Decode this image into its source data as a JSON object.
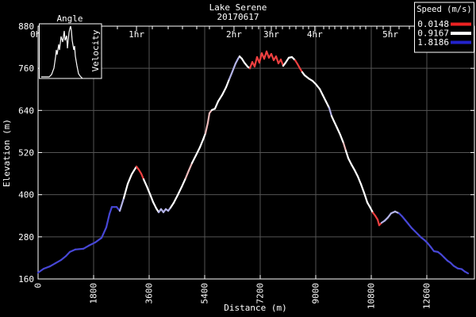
{
  "window": {
    "background": "#000000"
  },
  "chart_data": {
    "type": "line",
    "title": "Lake Serene",
    "subtitle": "20170617",
    "xlabel": "Distance (m)",
    "ylabel": "Elevation (m)",
    "xlim": [
      0,
      14143
    ],
    "ylim": [
      160,
      880
    ],
    "xticks": [
      0,
      1800,
      3600,
      5400,
      7200,
      9000,
      10800,
      12600
    ],
    "yticks": [
      160,
      280,
      400,
      520,
      640,
      760,
      880
    ],
    "grid": true,
    "colors": {
      "background": "#000000",
      "axis": "#ffffff",
      "grid": "#555555",
      "text": "#ffffff"
    },
    "speed_legend": {
      "title": "Speed (m/s)",
      "entries": [
        {
          "label": "0.0148",
          "color": "#ee2222"
        },
        {
          "label": "0.9167",
          "color": "#ffffff"
        },
        {
          "label": "1.8186",
          "color": "#2222cc"
        }
      ]
    },
    "speed_color_map": {
      "s": "#ee4040",
      "P": "#eebbbb",
      "m": "#ffffff",
      "F": "#b4b4e8",
      "f": "#4747d6"
    },
    "time_axis": {
      "hour_marks": [
        {
          "label": "0hr",
          "dist": 0
        },
        {
          "label": "1hr",
          "dist": 3190
        },
        {
          "label": "2hr",
          "dist": 6350
        },
        {
          "label": "3hr",
          "dist": 7560
        },
        {
          "label": "4hr",
          "dist": 8970
        },
        {
          "label": "5hr",
          "dist": 11420
        }
      ],
      "minor_tick_dists": [
        643,
        1286,
        1929,
        2571,
        3703,
        4217,
        4680,
        5143,
        5554,
        5966,
        6737,
        6943,
        7149,
        7354,
        7714,
        7920,
        8151,
        8357,
        8589,
        8769,
        9257,
        9437,
        9617,
        9823,
        10029,
        10234,
        10440,
        10620,
        10980,
        11186,
        11700,
        12034,
        12394,
        12780,
        13166,
        13577
      ]
    },
    "inset": {
      "title": "Angle",
      "ylabel": "Velocity",
      "histogram_rel": [
        [
          2,
          67
        ],
        [
          12,
          67
        ],
        [
          15,
          64
        ],
        [
          18,
          56
        ],
        [
          20,
          42
        ],
        [
          21,
          33
        ],
        [
          22,
          39
        ],
        [
          24,
          26
        ],
        [
          25,
          33
        ],
        [
          27,
          16
        ],
        [
          29,
          23
        ],
        [
          31,
          9
        ],
        [
          32,
          21
        ],
        [
          34,
          15
        ],
        [
          35,
          31
        ],
        [
          37,
          11
        ],
        [
          38,
          6
        ],
        [
          39,
          3
        ],
        [
          40,
          9
        ],
        [
          41,
          21
        ],
        [
          43,
          33
        ],
        [
          44,
          28
        ],
        [
          45,
          41
        ],
        [
          47,
          53
        ],
        [
          49,
          63
        ],
        [
          51,
          66
        ],
        [
          53,
          68
        ],
        [
          54,
          69
        ]
      ]
    },
    "profile": [
      [
        0,
        178,
        "f"
      ],
      [
        180,
        189,
        "f"
      ],
      [
        386,
        196,
        "f"
      ],
      [
        566,
        205,
        "f"
      ],
      [
        746,
        214,
        "f"
      ],
      [
        900,
        225,
        "f"
      ],
      [
        1029,
        237,
        "f"
      ],
      [
        1209,
        244,
        "f"
      ],
      [
        1466,
        246,
        "f"
      ],
      [
        1646,
        255,
        "f"
      ],
      [
        1851,
        264,
        "f"
      ],
      [
        2057,
        277,
        "f"
      ],
      [
        2211,
        307,
        "f"
      ],
      [
        2314,
        345,
        "f"
      ],
      [
        2391,
        365,
        "f"
      ],
      [
        2546,
        365,
        "f"
      ],
      [
        2649,
        354,
        "F"
      ],
      [
        2777,
        390,
        "m"
      ],
      [
        2906,
        431,
        "m"
      ],
      [
        3034,
        458,
        "m"
      ],
      [
        3111,
        469,
        "m"
      ],
      [
        3189,
        480,
        "s"
      ],
      [
        3266,
        471,
        "s"
      ],
      [
        3343,
        460,
        "s"
      ],
      [
        3420,
        444,
        "m"
      ],
      [
        3523,
        424,
        "m"
      ],
      [
        3626,
        402,
        "m"
      ],
      [
        3729,
        379,
        "m"
      ],
      [
        3831,
        361,
        "m"
      ],
      [
        3909,
        350,
        "F"
      ],
      [
        3986,
        359,
        "F"
      ],
      [
        4063,
        350,
        "F"
      ],
      [
        4140,
        359,
        "F"
      ],
      [
        4217,
        354,
        "F"
      ],
      [
        4294,
        363,
        "m"
      ],
      [
        4397,
        377,
        "m"
      ],
      [
        4526,
        399,
        "m"
      ],
      [
        4654,
        422,
        "m"
      ],
      [
        4783,
        447,
        "P"
      ],
      [
        4886,
        469,
        "P"
      ],
      [
        4989,
        490,
        "m"
      ],
      [
        5117,
        512,
        "m"
      ],
      [
        5246,
        535,
        "m"
      ],
      [
        5349,
        557,
        "m"
      ],
      [
        5426,
        575,
        "P"
      ],
      [
        5503,
        605,
        "P"
      ],
      [
        5554,
        632,
        "P"
      ],
      [
        5631,
        641,
        "m"
      ],
      [
        5734,
        645,
        "m"
      ],
      [
        5837,
        666,
        "m"
      ],
      [
        5966,
        684,
        "m"
      ],
      [
        6094,
        706,
        "m"
      ],
      [
        6197,
        729,
        "F"
      ],
      [
        6300,
        751,
        "F"
      ],
      [
        6403,
        774,
        "F"
      ],
      [
        6480,
        787,
        "F"
      ],
      [
        6531,
        794,
        "m"
      ],
      [
        6609,
        787,
        "m"
      ],
      [
        6686,
        776,
        "m"
      ],
      [
        6789,
        765,
        "m"
      ],
      [
        6866,
        760,
        "s"
      ],
      [
        6943,
        778,
        "s"
      ],
      [
        7020,
        765,
        "s"
      ],
      [
        7097,
        792,
        "s"
      ],
      [
        7174,
        776,
        "s"
      ],
      [
        7251,
        803,
        "s"
      ],
      [
        7329,
        787,
        "s"
      ],
      [
        7406,
        808,
        "s"
      ],
      [
        7483,
        790,
        "s"
      ],
      [
        7560,
        801,
        "s"
      ],
      [
        7637,
        783,
        "s"
      ],
      [
        7714,
        794,
        "s"
      ],
      [
        7791,
        774,
        "s"
      ],
      [
        7869,
        785,
        "s"
      ],
      [
        7946,
        767,
        "m"
      ],
      [
        8023,
        776,
        "m"
      ],
      [
        8126,
        790,
        "m"
      ],
      [
        8229,
        792,
        "m"
      ],
      [
        8331,
        783,
        "s"
      ],
      [
        8409,
        772,
        "s"
      ],
      [
        8486,
        760,
        "s"
      ],
      [
        8563,
        749,
        "m"
      ],
      [
        8640,
        740,
        "m"
      ],
      [
        8769,
        731,
        "m"
      ],
      [
        8897,
        724,
        "m"
      ],
      [
        9000,
        715,
        "m"
      ],
      [
        9129,
        701,
        "m"
      ],
      [
        9231,
        683,
        "m"
      ],
      [
        9334,
        665,
        "m"
      ],
      [
        9437,
        647,
        "F"
      ],
      [
        9514,
        624,
        "m"
      ],
      [
        9591,
        609,
        "m"
      ],
      [
        9694,
        590,
        "m"
      ],
      [
        9797,
        570,
        "m"
      ],
      [
        9900,
        547,
        "P"
      ],
      [
        9977,
        525,
        "m"
      ],
      [
        10054,
        504,
        "m"
      ],
      [
        10157,
        486,
        "m"
      ],
      [
        10260,
        470,
        "m"
      ],
      [
        10363,
        452,
        "m"
      ],
      [
        10466,
        430,
        "m"
      ],
      [
        10569,
        405,
        "m"
      ],
      [
        10671,
        378,
        "m"
      ],
      [
        10774,
        362,
        "m"
      ],
      [
        10851,
        349,
        "s"
      ],
      [
        10929,
        340,
        "s"
      ],
      [
        11006,
        329,
        "s"
      ],
      [
        11057,
        313,
        "s"
      ],
      [
        11134,
        320,
        "F"
      ],
      [
        11237,
        326,
        "F"
      ],
      [
        11340,
        335,
        "F"
      ],
      [
        11443,
        347,
        "F"
      ],
      [
        11571,
        352,
        "F"
      ],
      [
        11700,
        347,
        "f"
      ],
      [
        11803,
        338,
        "f"
      ],
      [
        11906,
        327,
        "f"
      ],
      [
        12009,
        316,
        "f"
      ],
      [
        12111,
        305,
        "f"
      ],
      [
        12214,
        296,
        "f"
      ],
      [
        12317,
        287,
        "f"
      ],
      [
        12420,
        278,
        "f"
      ],
      [
        12523,
        271,
        "f"
      ],
      [
        12626,
        262,
        "f"
      ],
      [
        12729,
        251,
        "f"
      ],
      [
        12831,
        239,
        "f"
      ],
      [
        12960,
        237,
        "f"
      ],
      [
        13063,
        230,
        "f"
      ],
      [
        13166,
        221,
        "f"
      ],
      [
        13269,
        212,
        "f"
      ],
      [
        13371,
        206,
        "f"
      ],
      [
        13474,
        197,
        "f"
      ],
      [
        13603,
        190,
        "f"
      ],
      [
        13731,
        188,
        "f"
      ],
      [
        13834,
        181,
        "f"
      ],
      [
        13937,
        176,
        "f"
      ]
    ]
  }
}
